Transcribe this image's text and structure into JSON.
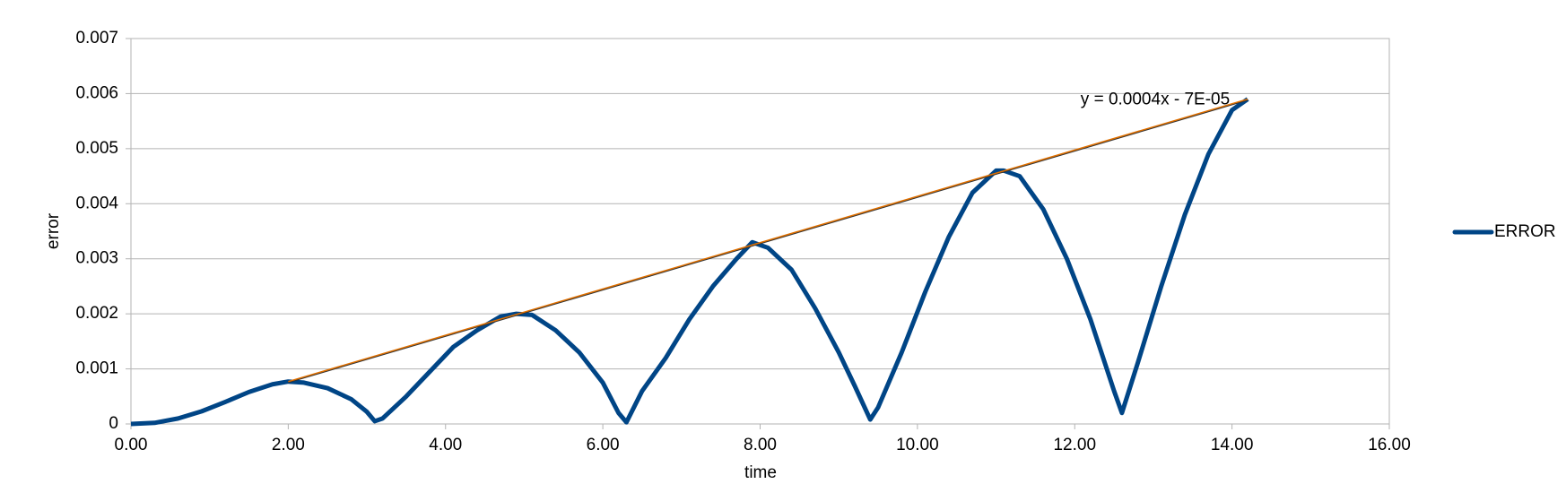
{
  "chart_data": {
    "type": "line",
    "x_label": "time",
    "y_label": "error",
    "x": [
      0,
      0.3,
      0.6,
      0.9,
      1.2,
      1.5,
      1.8,
      2.0,
      2.2,
      2.5,
      2.8,
      3.0,
      3.1,
      3.2,
      3.5,
      3.8,
      4.1,
      4.4,
      4.7,
      4.9,
      5.1,
      5.4,
      5.7,
      6.0,
      6.2,
      6.3,
      6.5,
      6.8,
      7.1,
      7.4,
      7.7,
      7.9,
      8.1,
      8.4,
      8.7,
      9.0,
      9.2,
      9.4,
      9.5,
      9.8,
      10.1,
      10.4,
      10.7,
      11.0,
      11.1,
      11.3,
      11.6,
      11.9,
      12.2,
      12.5,
      12.6,
      12.8,
      13.1,
      13.4,
      13.7,
      14.0,
      14.2
    ],
    "series": [
      {
        "name": "ERROR",
        "color": "#004586",
        "values": [
          0,
          2e-05,
          0.0001,
          0.00023,
          0.0004,
          0.00058,
          0.00072,
          0.00077,
          0.00075,
          0.00065,
          0.00045,
          0.00022,
          5e-05,
          0.0001,
          0.0005,
          0.00095,
          0.0014,
          0.0017,
          0.00195,
          0.002,
          0.00198,
          0.0017,
          0.0013,
          0.00075,
          0.0002,
          3e-05,
          0.0006,
          0.0012,
          0.0019,
          0.0025,
          0.003,
          0.0033,
          0.0032,
          0.0028,
          0.0021,
          0.0013,
          0.0007,
          8e-05,
          0.0003,
          0.0013,
          0.0024,
          0.0034,
          0.0042,
          0.0046,
          0.0046,
          0.0045,
          0.0039,
          0.003,
          0.0019,
          0.0006,
          0.0002,
          0.0011,
          0.0025,
          0.0038,
          0.0049,
          0.0057,
          0.0059
        ]
      }
    ],
    "trendline": {
      "label": "y = 0.0004x - 7E-05",
      "color": "#e07000",
      "x": [
        2.0,
        14.2
      ],
      "values": [
        0.00077,
        0.0059
      ]
    },
    "xlim": [
      0,
      16
    ],
    "xticks": [
      {
        "value": 0,
        "label": "0.00"
      },
      {
        "value": 2,
        "label": "2.00"
      },
      {
        "value": 4,
        "label": "4.00"
      },
      {
        "value": 6,
        "label": "6.00"
      },
      {
        "value": 8,
        "label": "8.00"
      },
      {
        "value": 10,
        "label": "10.00"
      },
      {
        "value": 12,
        "label": "12.00"
      },
      {
        "value": 14,
        "label": "14.00"
      },
      {
        "value": 16,
        "label": "16.00"
      }
    ],
    "ylim": [
      0,
      0.007
    ],
    "yticks": [
      0,
      0.001,
      0.002,
      0.003,
      0.004,
      0.005,
      0.006,
      0.007
    ],
    "grid": true,
    "legend": "right"
  }
}
